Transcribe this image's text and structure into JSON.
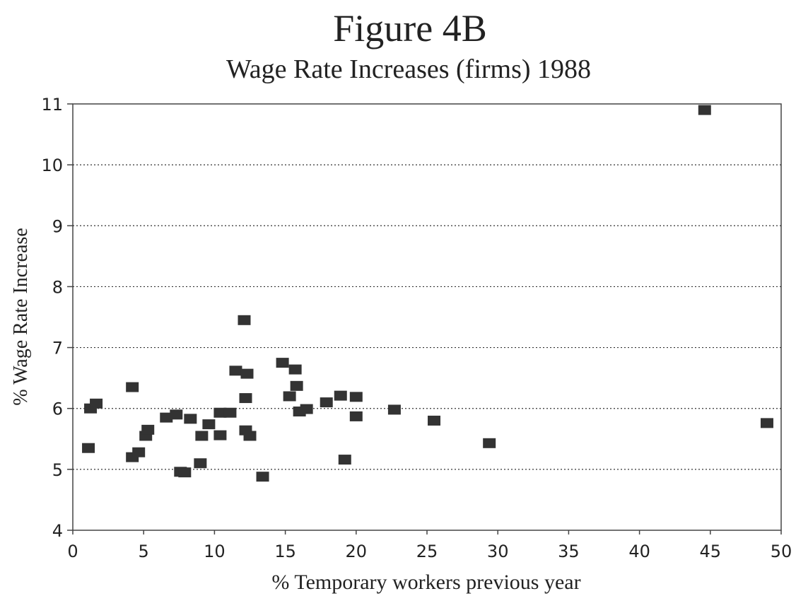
{
  "chart_data": {
    "type": "scatter",
    "title": "Figure 4B",
    "subtitle": "Wage Rate Increases (firms) 1988",
    "x_label": "% Temporary workers previous year",
    "y_label": "% Wage Rate Increase",
    "color": "#333333",
    "grid": true,
    "xlim": [
      0,
      50
    ],
    "xticks": [
      0,
      5,
      10,
      15,
      20,
      25,
      30,
      35,
      40,
      45,
      50
    ],
    "ylim": [
      4,
      11
    ],
    "yticks": [
      4,
      5,
      6,
      7,
      8,
      9,
      10,
      11
    ],
    "x": [
      44.6,
      12.1,
      4.2,
      1.25,
      1.65,
      1.1,
      4.2,
      4.65,
      5.15,
      5.3,
      6.6,
      7.3,
      7.6,
      7.9,
      8.3,
      9.1,
      9.0,
      9.6,
      10.4,
      10.4,
      11.1,
      11.5,
      12.3,
      12.2,
      12.2,
      12.5,
      13.4,
      14.8,
      15.7,
      15.8,
      15.3,
      16.0,
      16.5,
      17.9,
      18.9,
      19.2,
      20.0,
      20.0,
      22.7,
      25.5,
      29.4,
      49.0
    ],
    "y": [
      10.9,
      7.45,
      6.35,
      6.0,
      6.08,
      5.35,
      5.2,
      5.28,
      5.55,
      5.65,
      5.85,
      5.9,
      4.96,
      4.95,
      5.83,
      5.55,
      5.1,
      5.74,
      5.93,
      5.56,
      5.93,
      6.62,
      6.57,
      6.17,
      5.64,
      5.55,
      4.88,
      6.75,
      6.64,
      6.37,
      6.2,
      5.95,
      5.99,
      6.1,
      6.21,
      5.16,
      6.19,
      5.87,
      5.98,
      5.8,
      5.43,
      5.76
    ]
  }
}
